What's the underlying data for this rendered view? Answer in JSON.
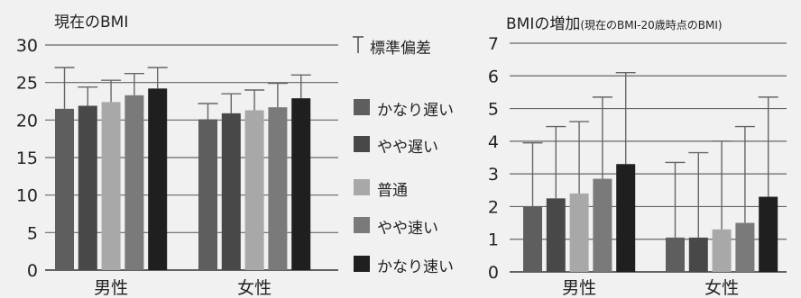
{
  "legend": {
    "error_label": "標準偏差",
    "items": [
      {
        "label": "かなり遅い",
        "color": "#5e5e5e"
      },
      {
        "label": "やや遅い",
        "color": "#484848"
      },
      {
        "label": "普通",
        "color": "#a8a8a8"
      },
      {
        "label": "やや速い",
        "color": "#7a7a7a"
      },
      {
        "label": "かなり速い",
        "color": "#1f1f1f"
      }
    ]
  },
  "chart_data": [
    {
      "type": "bar",
      "title": "現在のBMI",
      "subtitle": "",
      "categories": [
        "男性",
        "女性"
      ],
      "ylim": [
        0,
        30
      ],
      "yticks": [
        0,
        5,
        10,
        15,
        20,
        25,
        30
      ],
      "grid": true,
      "error_bars": "standard deviation, upper only",
      "series": [
        {
          "name": "かなり遅い",
          "values": [
            21.5,
            20.1
          ],
          "sd_top": [
            27.0,
            22.2
          ]
        },
        {
          "name": "やや遅い",
          "values": [
            21.9,
            20.9
          ],
          "sd_top": [
            24.4,
            23.5
          ]
        },
        {
          "name": "普通",
          "values": [
            22.4,
            21.3
          ],
          "sd_top": [
            25.3,
            24.0
          ]
        },
        {
          "name": "やや速い",
          "values": [
            23.3,
            21.7
          ],
          "sd_top": [
            26.2,
            24.9
          ]
        },
        {
          "name": "かなり速い",
          "values": [
            24.2,
            22.9
          ],
          "sd_top": [
            27.0,
            26.0
          ]
        }
      ]
    },
    {
      "type": "bar",
      "title": "BMIの増加",
      "subtitle": "(現在のBMI-20歳時点のBMI)",
      "categories": [
        "男性",
        "女性"
      ],
      "ylim": [
        0,
        7
      ],
      "yticks": [
        0,
        1,
        2,
        3,
        4,
        5,
        6,
        7
      ],
      "grid": true,
      "error_bars": "standard deviation, upper only",
      "series": [
        {
          "name": "かなり遅い",
          "values": [
            2.0,
            1.05
          ],
          "sd_top": [
            3.95,
            3.35
          ]
        },
        {
          "name": "やや遅い",
          "values": [
            2.25,
            1.05
          ],
          "sd_top": [
            4.45,
            3.65
          ]
        },
        {
          "name": "普通",
          "values": [
            2.4,
            1.3
          ],
          "sd_top": [
            4.6,
            4.0
          ]
        },
        {
          "name": "やや速い",
          "values": [
            2.85,
            1.5
          ],
          "sd_top": [
            5.35,
            4.45
          ]
        },
        {
          "name": "かなり速い",
          "values": [
            3.3,
            2.3
          ],
          "sd_top": [
            6.1,
            5.35
          ]
        }
      ]
    }
  ]
}
